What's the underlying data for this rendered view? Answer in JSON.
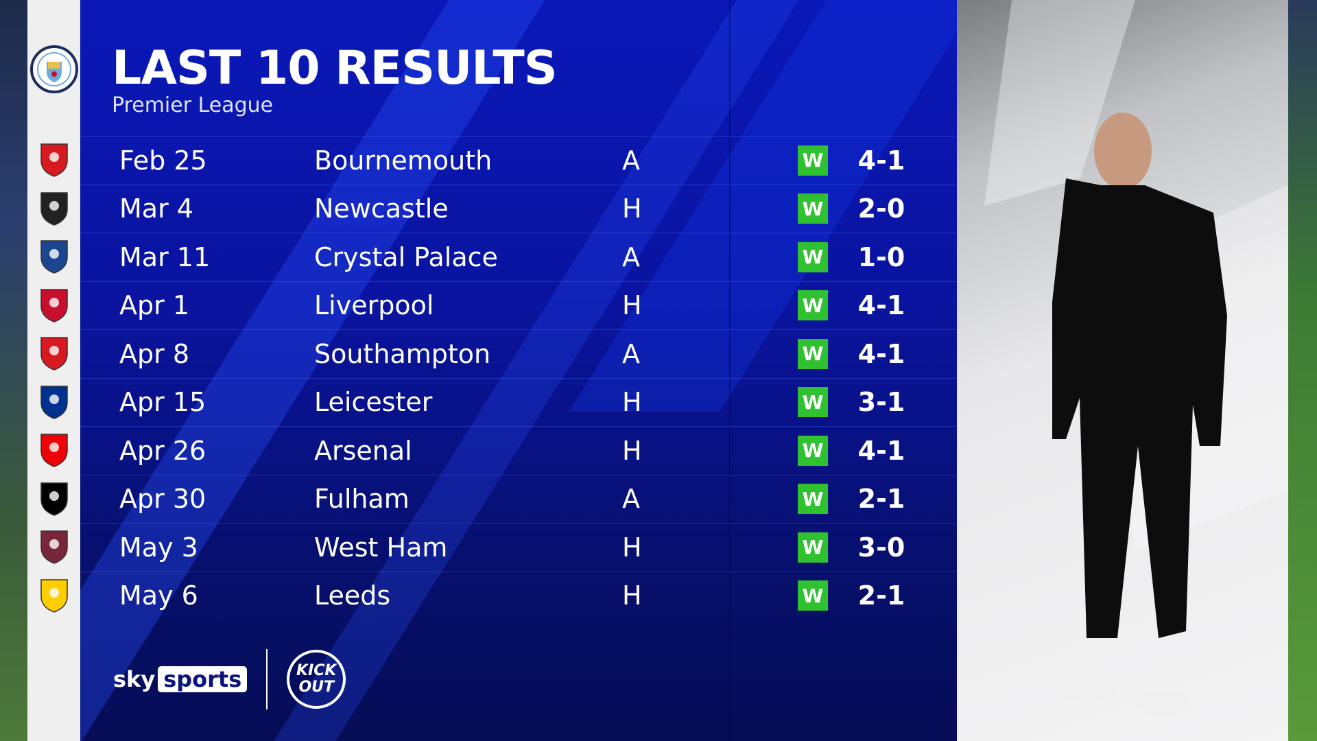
{
  "header": {
    "title": "LAST 10 RESULTS",
    "subtitle": "Premier League"
  },
  "team_crest": "manchester-city-crest",
  "results": [
    {
      "date": "Feb 25",
      "opponent": "Bournemouth",
      "venue": "A",
      "result": "W",
      "score": "4-1",
      "crest": "bournemouth-crest"
    },
    {
      "date": "Mar 4",
      "opponent": "Newcastle",
      "venue": "H",
      "result": "W",
      "score": "2-0",
      "crest": "newcastle-crest"
    },
    {
      "date": "Mar 11",
      "opponent": "Crystal Palace",
      "venue": "A",
      "result": "W",
      "score": "1-0",
      "crest": "crystal-palace-crest"
    },
    {
      "date": "Apr 1",
      "opponent": "Liverpool",
      "venue": "H",
      "result": "W",
      "score": "4-1",
      "crest": "liverpool-crest"
    },
    {
      "date": "Apr 8",
      "opponent": "Southampton",
      "venue": "A",
      "result": "W",
      "score": "4-1",
      "crest": "southampton-crest"
    },
    {
      "date": "Apr 15",
      "opponent": "Leicester",
      "venue": "H",
      "result": "W",
      "score": "3-1",
      "crest": "leicester-crest"
    },
    {
      "date": "Apr 26",
      "opponent": "Arsenal",
      "venue": "H",
      "result": "W",
      "score": "4-1",
      "crest": "arsenal-crest"
    },
    {
      "date": "Apr 30",
      "opponent": "Fulham",
      "venue": "A",
      "result": "W",
      "score": "2-1",
      "crest": "fulham-crest"
    },
    {
      "date": "May 3",
      "opponent": "West Ham",
      "venue": "H",
      "result": "W",
      "score": "3-0",
      "crest": "west-ham-crest"
    },
    {
      "date": "May 6",
      "opponent": "Leeds",
      "venue": "H",
      "result": "W",
      "score": "2-1",
      "crest": "leeds-crest"
    }
  ],
  "crest_colors": [
    "#d71920",
    "#222222",
    "#1b458f",
    "#c8102e",
    "#d71920",
    "#003090",
    "#ef0107",
    "#000000",
    "#7a263a",
    "#ffcd00"
  ],
  "win_color": "#2fc12f",
  "branding": {
    "sky": "sky",
    "sports": "sports",
    "kick_it_out_1": "KICK",
    "kick_it_out_2": "OUT"
  }
}
